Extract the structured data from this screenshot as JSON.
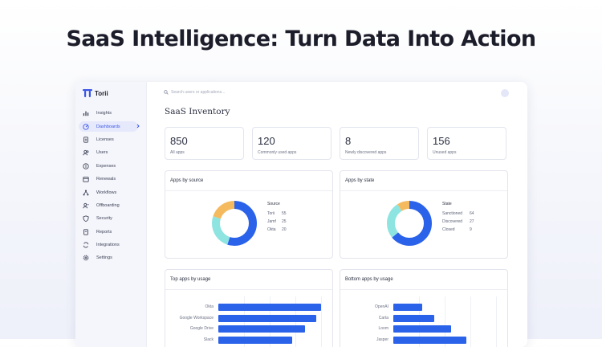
{
  "headline": "SaaS Intelligence: Turn Data Into Action",
  "brand": {
    "name": "Torii"
  },
  "sidebar": {
    "items": [
      {
        "label": "Insights",
        "icon": "bar-chart-icon"
      },
      {
        "label": "Dashboards",
        "icon": "dashboard-icon",
        "active": true
      },
      {
        "label": "Licenses",
        "icon": "license-icon"
      },
      {
        "label": "Users",
        "icon": "users-icon"
      },
      {
        "label": "Expenses",
        "icon": "dollar-icon"
      },
      {
        "label": "Renewals",
        "icon": "calendar-icon"
      },
      {
        "label": "Workflows",
        "icon": "workflow-icon"
      },
      {
        "label": "Offboarding",
        "icon": "user-minus-icon"
      },
      {
        "label": "Security",
        "icon": "shield-icon"
      },
      {
        "label": "Reports",
        "icon": "report-icon"
      },
      {
        "label": "Integrations",
        "icon": "sync-icon"
      },
      {
        "label": "Settings",
        "icon": "gear-icon"
      }
    ]
  },
  "search": {
    "placeholder": "Search users or applications..."
  },
  "page": {
    "title": "SaaS Inventory"
  },
  "stats": [
    {
      "value": "850",
      "label": "All apps"
    },
    {
      "value": "120",
      "label": "Commonly used apps"
    },
    {
      "value": "8",
      "label": "Newly discovered apps"
    },
    {
      "value": "156",
      "label": "Unused apps"
    }
  ],
  "colors": {
    "accent": "#3b55e6",
    "bar": "#2a62ea",
    "blue": "#2a62ea",
    "teal": "#8ee4e0",
    "orange": "#f5b95e"
  },
  "apps_by_source": {
    "title": "Apps by source",
    "legend_title": "Source",
    "items": [
      {
        "name": "Torii",
        "value": 55,
        "color": "#2a62ea"
      },
      {
        "name": "Jamf",
        "value": 25,
        "color": "#8ee4e0"
      },
      {
        "name": "Okta",
        "value": 20,
        "color": "#f5b95e"
      }
    ]
  },
  "apps_by_state": {
    "title": "Apps by state",
    "legend_title": "State",
    "items": [
      {
        "name": "Sanctioned",
        "value": 64,
        "color": "#2a62ea"
      },
      {
        "name": "Discovered",
        "value": 27,
        "color": "#8ee4e0"
      },
      {
        "name": "Closed",
        "value": 9,
        "color": "#f5b95e"
      }
    ]
  },
  "top_apps": {
    "title": "Top apps by usage",
    "items": [
      {
        "name": "Okta",
        "value": 100
      },
      {
        "name": "Google Workspace",
        "value": 95
      },
      {
        "name": "Google Drive",
        "value": 84
      },
      {
        "name": "Slack",
        "value": 72
      }
    ]
  },
  "bottom_apps": {
    "title": "Bottom apps by usage",
    "items": [
      {
        "name": "OpenAI",
        "value": 28
      },
      {
        "name": "Carta",
        "value": 40
      },
      {
        "name": "Loom",
        "value": 56
      },
      {
        "name": "Jasper",
        "value": 71
      }
    ]
  }
}
